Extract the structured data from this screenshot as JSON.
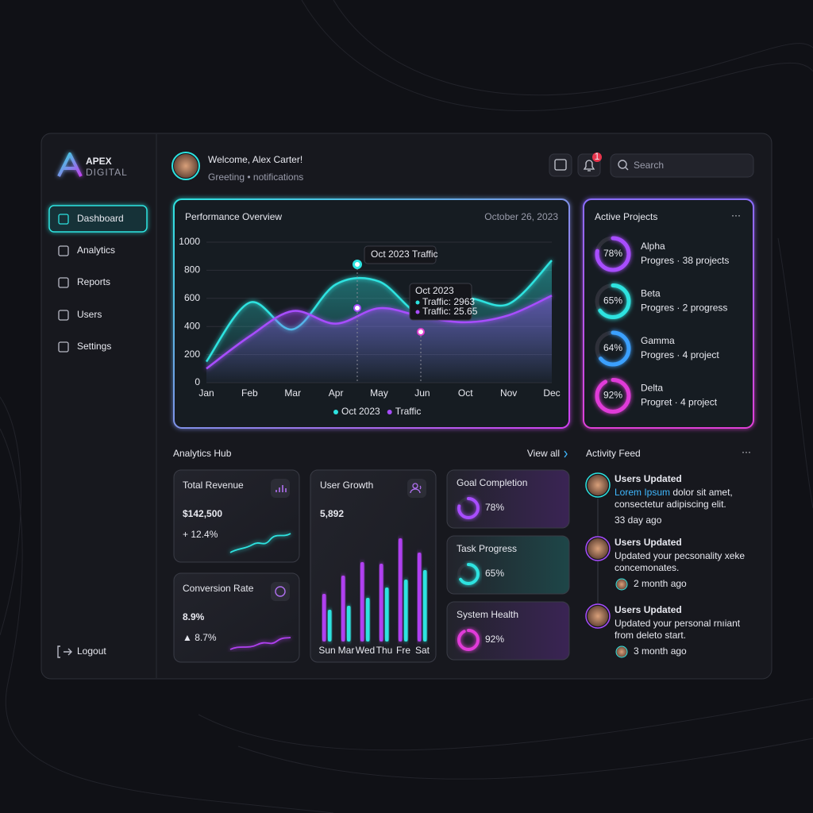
{
  "brand": {
    "name": "APEX",
    "tagline": "DIGITAL"
  },
  "nav": {
    "items": [
      "Dashboard",
      "Analytics",
      "Reports",
      "Users",
      "Settings"
    ],
    "logout": "Logout"
  },
  "header": {
    "title": "Welcome, Alex Carter!",
    "subtitle": "Greeting • notifications",
    "badge": "1",
    "search": "Search"
  },
  "chart_data": [
    {
      "type": "area",
      "title": "Performance Overview",
      "subtitle": "October 26, 2023",
      "categories": [
        "Jan",
        "Feb",
        "Mar",
        "Apr",
        "May",
        "Jun",
        "Oct",
        "Nov",
        "Dec"
      ],
      "series": [
        {
          "name": "Oct 2023",
          "color": "#2de3e0",
          "values": [
            150,
            570,
            380,
            700,
            720,
            480,
            600,
            560,
            870
          ]
        },
        {
          "name": "Traffic",
          "color": "#a84dff",
          "values": [
            100,
            330,
            510,
            420,
            530,
            470,
            430,
            480,
            620
          ]
        }
      ],
      "ylim": [
        0,
        1000
      ],
      "yticks": [
        0,
        200,
        400,
        600,
        800,
        1000
      ],
      "grid": true,
      "annotations": [
        {
          "text": "Oct 2023 Traffic"
        },
        {
          "title": "Oct 2023",
          "lines": [
            "Traffic: 2963",
            "Traffic: 25.65"
          ]
        }
      ]
    },
    {
      "type": "bar",
      "title": "User Growth",
      "headline": "5,892",
      "categories": [
        "Sun",
        "Mar",
        "Wed",
        "Thu",
        "Fre",
        "Sat"
      ],
      "series": [
        {
          "color": "#b040f0",
          "values": [
            60,
            83,
            100,
            98,
            130,
            112
          ]
        },
        {
          "color": "#2de3e0",
          "values": [
            40,
            45,
            55,
            68,
            78,
            90
          ]
        }
      ]
    }
  ],
  "projects": {
    "title": "Active Projects",
    "items": [
      {
        "name": "Alpha",
        "percent": 78,
        "percent_label": "78%",
        "detail": "Progres · 38 projects",
        "color": "#a84dff"
      },
      {
        "name": "Beta",
        "percent": 65,
        "percent_label": "65%",
        "detail": "Progres · 2 progress",
        "color": "#2de3e0"
      },
      {
        "name": "Gamma",
        "percent": 64,
        "percent_label": "64%",
        "detail": "Progres · 4 project",
        "color": "#3aa0ff"
      },
      {
        "name": "Delta",
        "percent": 92,
        "percent_label": "92%",
        "detail": "Progret · 4 project",
        "color": "#e03ad8"
      }
    ]
  },
  "analytics": {
    "title": "Analytics Hub",
    "link": "View all",
    "revenue": {
      "label": "Total Revenue",
      "value": "$142,500",
      "change": "+ 12.4%"
    },
    "conversion": {
      "label": "Conversion Rate",
      "value": "8.9%",
      "change": "▲ 8.7%"
    },
    "goals": [
      {
        "label": "Goal Completion",
        "percent": 78,
        "percent_label": "78%",
        "color": "#a84dff"
      },
      {
        "label": "Task Progress",
        "percent": 65,
        "percent_label": "65%",
        "color": "#2de3e0"
      },
      {
        "label": "System Health",
        "percent": 92,
        "percent_label": "92%",
        "color": "#e03ad8"
      }
    ]
  },
  "feed": {
    "title": "Activity Feed",
    "items": [
      {
        "title": "Users Updated",
        "highlight": "Lorem Ipsum",
        "lines": [
          "dolor sit amet,",
          "consectetur adipiscing elit."
        ],
        "time": "33 day ago"
      },
      {
        "title": "Users Updated",
        "lines": [
          "Updated your pecsonality xeke",
          "concemonates."
        ],
        "time": "2 month ago"
      },
      {
        "title": "Users Updated",
        "lines": [
          "Updated your personal rnıiant",
          "from deleto start."
        ],
        "time": "3 month ago"
      }
    ]
  }
}
